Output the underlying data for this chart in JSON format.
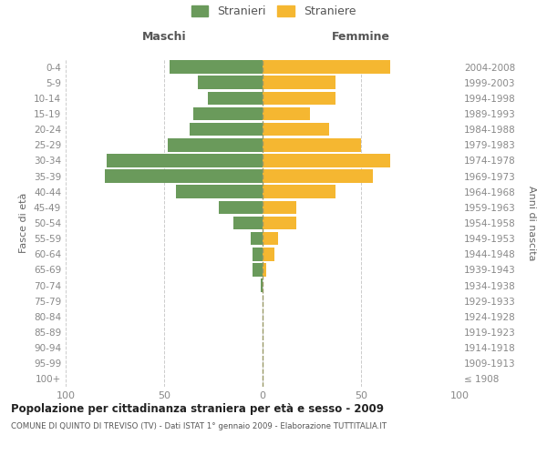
{
  "age_groups": [
    "100+",
    "95-99",
    "90-94",
    "85-89",
    "80-84",
    "75-79",
    "70-74",
    "65-69",
    "60-64",
    "55-59",
    "50-54",
    "45-49",
    "40-44",
    "35-39",
    "30-34",
    "25-29",
    "20-24",
    "15-19",
    "10-14",
    "5-9",
    "0-4"
  ],
  "birth_years": [
    "≤ 1908",
    "1909-1913",
    "1914-1918",
    "1919-1923",
    "1924-1928",
    "1929-1933",
    "1934-1938",
    "1939-1943",
    "1944-1948",
    "1949-1953",
    "1954-1958",
    "1959-1963",
    "1964-1968",
    "1969-1973",
    "1974-1978",
    "1979-1983",
    "1984-1988",
    "1989-1993",
    "1994-1998",
    "1999-2003",
    "2004-2008"
  ],
  "males": [
    0,
    0,
    0,
    0,
    0,
    0,
    1,
    5,
    5,
    6,
    15,
    22,
    44,
    80,
    79,
    48,
    37,
    35,
    28,
    33,
    47
  ],
  "females": [
    0,
    0,
    0,
    0,
    0,
    0,
    0,
    2,
    6,
    8,
    17,
    17,
    37,
    56,
    65,
    50,
    34,
    24,
    37,
    37,
    65
  ],
  "male_color": "#6a9a5b",
  "female_color": "#f5b731",
  "background_color": "#ffffff",
  "grid_color": "#cccccc",
  "title": "Popolazione per cittadinanza straniera per età e sesso - 2009",
  "subtitle": "COMUNE DI QUINTO DI TREVISO (TV) - Dati ISTAT 1° gennaio 2009 - Elaborazione TUTTITALIA.IT",
  "xlabel_left": "Maschi",
  "xlabel_right": "Femmine",
  "ylabel_left": "Fasce di età",
  "ylabel_right": "Anni di nascita",
  "legend_male": "Stranieri",
  "legend_female": "Straniere",
  "xlim": 100,
  "bar_height": 0.85
}
